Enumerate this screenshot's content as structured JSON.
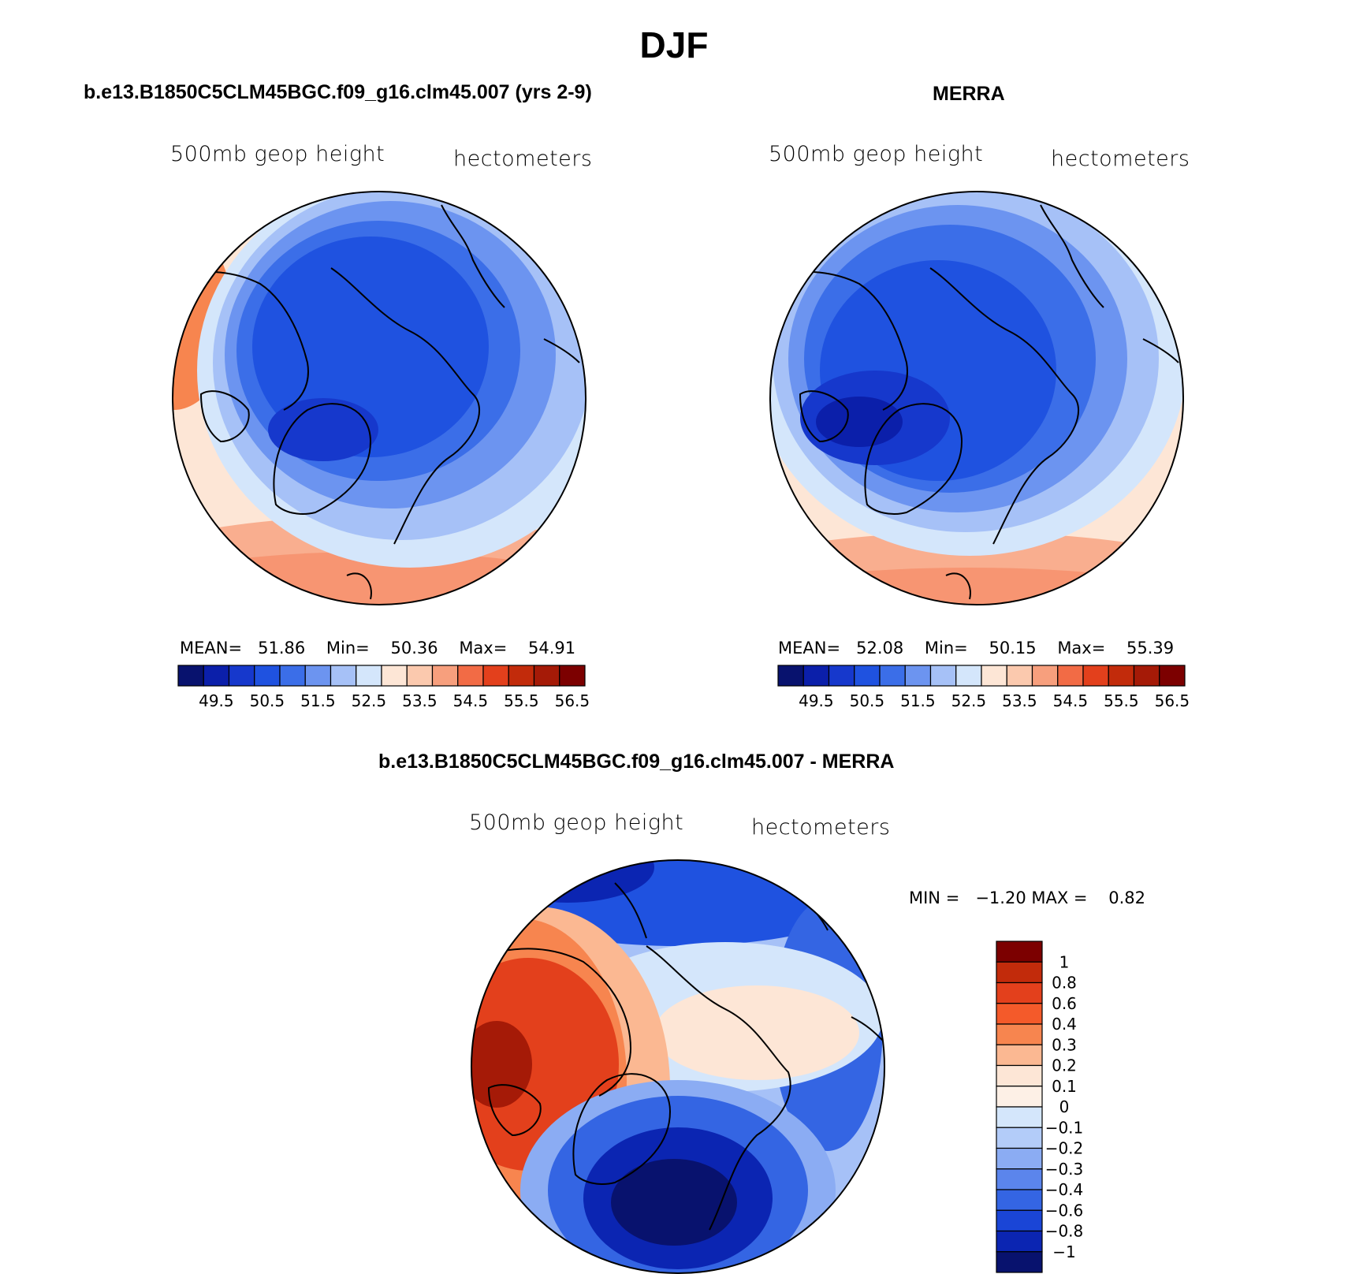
{
  "figure": {
    "title": "DJF"
  },
  "panels": [
    {
      "title": "b.e13.B1850C5CLM45BGC.f09_g16.clm45.007 (yrs 2-9)",
      "left_label": "500mb geop height",
      "right_label": "hectometers",
      "stats": {
        "mean_label": "MEAN=",
        "mean": "51.86",
        "min_label": "Min=",
        "min": "50.36",
        "max_label": "Max=",
        "max": "54.91"
      }
    },
    {
      "title": "MERRA",
      "left_label": "500mb geop height",
      "right_label": "hectometers",
      "stats": {
        "mean_label": "MEAN=",
        "mean": "52.08",
        "min_label": "Min=",
        "min": "50.15",
        "max_label": "Max=",
        "max": "55.39"
      }
    },
    {
      "title": "b.e13.B1850C5CLM45BGC.f09_g16.clm45.007 - MERRA",
      "left_label": "500mb geop height",
      "right_label": "hectometers",
      "stats": {
        "min_label": "MIN =",
        "min": "−1.20",
        "max_label": "MAX =",
        "max": "0.82"
      }
    }
  ],
  "colorbar_abs": {
    "colors": [
      "#08126e",
      "#0b1faa",
      "#1638cc",
      "#1f52e0",
      "#3b6ee8",
      "#6c94f0",
      "#a6c1f7",
      "#d4e6fb",
      "#fde6d6",
      "#fbc9ae",
      "#f79f7d",
      "#f26b45",
      "#e3401c",
      "#c22b0b",
      "#a51a07",
      "#7c0000"
    ],
    "ticks": [
      "49.5",
      "50.5",
      "51.5",
      "52.5",
      "53.5",
      "54.5",
      "55.5",
      "56.5"
    ]
  },
  "colorbar_diff": {
    "colors_top_to_bottom": [
      "#7c0000",
      "#c22b0b",
      "#e3401c",
      "#f45a2a",
      "#f7854f",
      "#fbb892",
      "#fde6d6",
      "#fdf0e6",
      "#d4e6fb",
      "#b3ccf9",
      "#8bacf3",
      "#5b85ec",
      "#3465e3",
      "#1a45d6",
      "#0b25b2",
      "#08126e"
    ],
    "ticks": [
      "1",
      "0.8",
      "0.6",
      "0.4",
      "0.3",
      "0.2",
      "0.1",
      "0",
      "−0.1",
      "−0.2",
      "−0.3",
      "−0.4",
      "−0.6",
      "−0.8",
      "−1"
    ]
  }
}
